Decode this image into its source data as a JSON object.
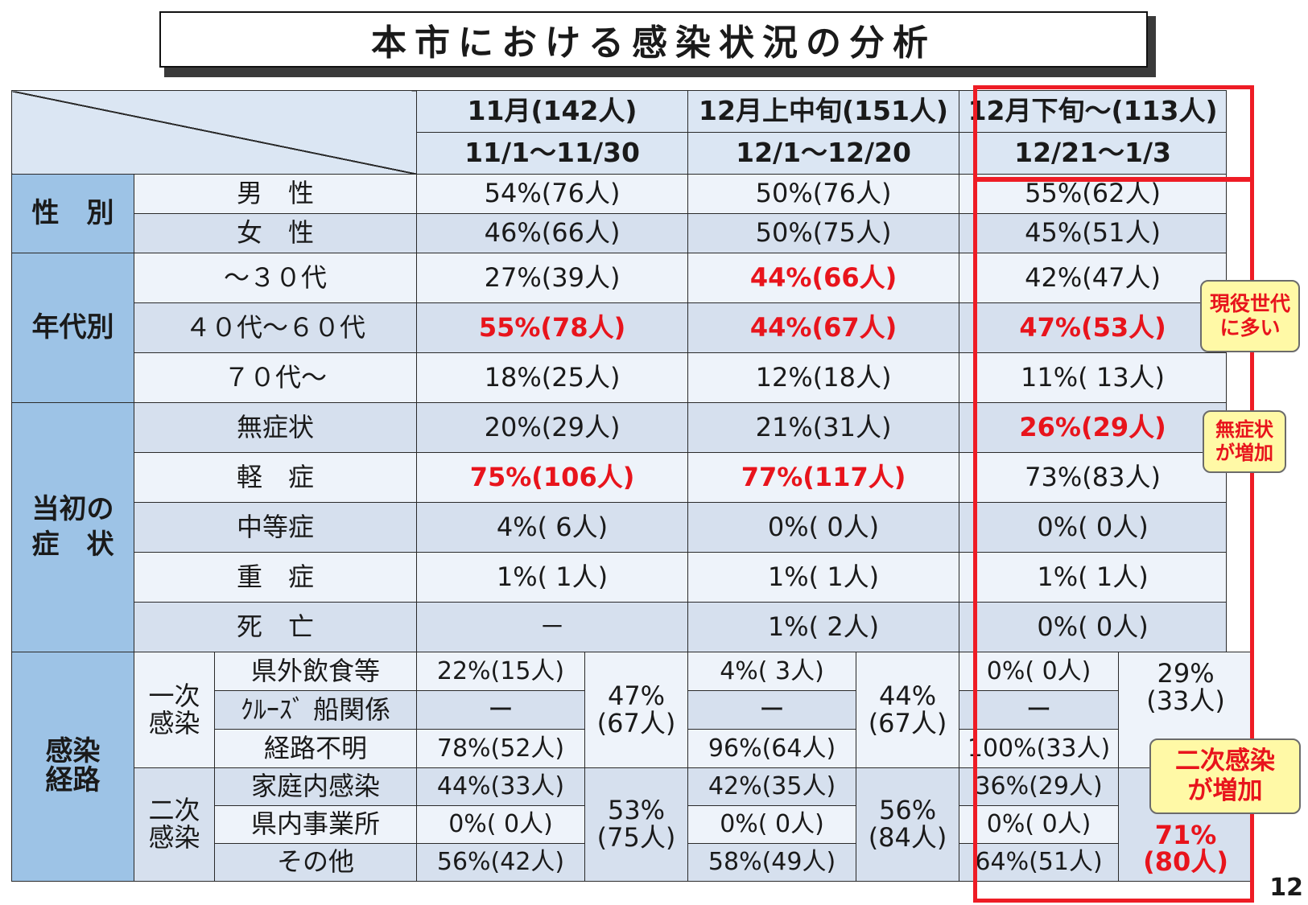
{
  "title": "本市における感染状況の分析",
  "page_number": "12",
  "header": {
    "col1_top": "11月(142人)",
    "col1_bottom": "11/1～11/30",
    "col2_top": "12月上中旬(151人)",
    "col2_bottom": "12/1～12/20",
    "col3_top": "12月下旬～(113人)",
    "col3_bottom": "12/21～1/3"
  },
  "sections": {
    "gender": {
      "label": "性　別",
      "rows": [
        {
          "label": "男　性",
          "v1": "54%(76人)",
          "v2": "50%(76人)",
          "v3": "55%(62人)"
        },
        {
          "label": "女　性",
          "v1": "46%(66人)",
          "v2": "50%(75人)",
          "v3": "45%(51人)"
        }
      ]
    },
    "age": {
      "label": "年代別",
      "rows": [
        {
          "label": "～３０代",
          "v1": "27%(39人)",
          "v2": "44%(66人)",
          "v3": "42%(47人)"
        },
        {
          "label": "４０代～６０代",
          "v1": "55%(78人)",
          "v2": "44%(67人)",
          "v3": "47%(53人)"
        },
        {
          "label": "７０代～",
          "v1": "18%(25人)",
          "v2": "12%(18人)",
          "v3": "11%( 13人)"
        }
      ]
    },
    "symptom": {
      "label_line1": "当初の",
      "label_line2": "症　状",
      "rows": [
        {
          "label": "無症状",
          "v1": "20%(29人)",
          "v2": "21%(31人)",
          "v3": "26%(29人)"
        },
        {
          "label": "軽　症",
          "v1": "75%(106人)",
          "v2": "77%(117人)",
          "v3": "73%(83人)"
        },
        {
          "label": "中等症",
          "v1": "4%( 6人)",
          "v2": "0%( 0人)",
          "v3": "0%( 0人)"
        },
        {
          "label": "重　症",
          "v1": "1%( 1人)",
          "v2": "1%( 1人)",
          "v3": "1%( 1人)"
        },
        {
          "label": "死　亡",
          "v1": "－",
          "v2": "1%( 2人)",
          "v3": "0%( 0人)"
        }
      ]
    },
    "route": {
      "label_line1": "感染",
      "label_line2": "経路",
      "primary": {
        "label_line1": "一次",
        "label_line2": "感染",
        "total1_line1": "47%",
        "total1_line2": "(67人)",
        "total2_line1": "44%",
        "total2_line2": "(67人)",
        "total3_line1": "29%",
        "total3_line2": "(33人)",
        "rows": [
          {
            "label": "県外飲食等",
            "v1": "22%(15人)",
            "v2": "4%( 3人)",
            "v3": "0%( 0人)"
          },
          {
            "label": "ｸﾙｰｽﾞ 船関係",
            "v1": "ー",
            "v2": "ー",
            "v3": "ー"
          },
          {
            "label": "経路不明",
            "v1": "78%(52人)",
            "v2": "96%(64人)",
            "v3": "100%(33人)"
          }
        ]
      },
      "secondary": {
        "label_line1": "二次",
        "label_line2": "感染",
        "total1_line1": "53%",
        "total1_line2": "(75人)",
        "total2_line1": "56%",
        "total2_line2": "(84人)",
        "total3_line1": "71%",
        "total3_line2": "(80人)",
        "rows": [
          {
            "label": "家庭内感染",
            "v1": "44%(33人)",
            "v2": "42%(35人)",
            "v3": "36%(29人)"
          },
          {
            "label": "県内事業所",
            "v1": "0%( 0人)",
            "v2": "0%( 0人)",
            "v3": "0%( 0人)"
          },
          {
            "label": "その他",
            "v1": "56%(42人)",
            "v2": "58%(49人)",
            "v3": "64%(51人)"
          }
        ]
      }
    }
  },
  "notes": {
    "working_age_line1": "現役世代",
    "working_age_line2": "に多い",
    "asymptomatic_line1": "無症状",
    "asymptomatic_line2": "が増加",
    "secondary_line1": "二次感染",
    "secondary_line2": "が増加"
  },
  "colors": {
    "highlight_red": "#e8141c",
    "category_blue": "#9dc3e6",
    "note_yellow": "#fff9a6"
  }
}
